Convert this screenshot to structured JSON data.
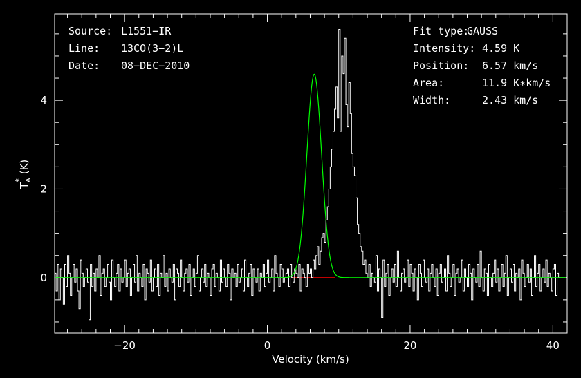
{
  "chart_data": {
    "type": "line",
    "xlabel": "Velocity (km/s)",
    "ylabel_main": "T",
    "ylabel_super": "*",
    "ylabel_sub": "A",
    "ylabel_unit": "(K)",
    "xlim": [
      -29.8,
      42.0
    ],
    "ylim": [
      -1.25,
      5.95
    ],
    "xticks": [
      -20,
      0,
      20,
      40
    ],
    "yticks": [
      0,
      2,
      4
    ],
    "xtick_labels": [
      "−20",
      "0",
      "20",
      "40"
    ],
    "ytick_labels": [
      "0",
      "2",
      "4"
    ],
    "info_left": [
      {
        "key": "Source:",
        "value": "L1551−IR"
      },
      {
        "key": "Line:",
        "value": "13CO(3−2)L"
      },
      {
        "key": "Date:",
        "value": "08−DEC−2010"
      }
    ],
    "info_right": [
      {
        "key": "Fit type:",
        "value": "GAUSS"
      },
      {
        "key": "Intensity:",
        "value": "4.59 K"
      },
      {
        "key": "Position:",
        "value": "6.57 km/s"
      },
      {
        "key": "Area:",
        "value": "11.9 K∗km/s"
      },
      {
        "key": "Width:",
        "value": "2.43 km/s"
      }
    ],
    "fit": {
      "amplitude": 4.59,
      "center": 6.57,
      "fwhm": 2.43
    },
    "colors": {
      "spectrum": "#ffffff",
      "fit": "#00ff00",
      "residual_baseline": "#ff0000",
      "axes": "#ffffff",
      "background": "#000000"
    },
    "spectrum": {
      "x_start": -29.8,
      "x_step": 0.2,
      "y": [
        0.1,
        -0.3,
        0.3,
        -0.5,
        0.2,
        0.0,
        -0.6,
        0.3,
        -0.2,
        0.5,
        0.1,
        -0.4,
        0.0,
        0.3,
        -0.1,
        0.2,
        -0.3,
        -0.7,
        0.4,
        0.1,
        -0.2,
        0.0,
        0.2,
        -0.1,
        -0.95,
        0.3,
        -0.2,
        0.1,
        -0.3,
        0.2,
        0.0,
        0.5,
        -0.4,
        0.1,
        0.2,
        -0.2,
        0.0,
        0.3,
        -0.1,
        -0.5,
        0.4,
        0.0,
        -0.2,
        0.1,
        0.3,
        -0.3,
        0.2,
        -0.1,
        0.0,
        0.4,
        -0.2,
        0.1,
        0.2,
        -0.4,
        0.0,
        0.3,
        -0.1,
        0.5,
        -0.3,
        0.1,
        0.0,
        -0.2,
        0.3,
        -0.5,
        0.2,
        0.1,
        -0.1,
        0.4,
        -0.3,
        0.0,
        0.2,
        -0.2,
        0.3,
        -0.4,
        0.1,
        0.0,
        0.5,
        -0.2,
        0.1,
        -0.3,
        0.2,
        0.0,
        -0.1,
        0.3,
        -0.5,
        0.2,
        0.1,
        -0.2,
        0.4,
        0.0,
        -0.3,
        0.1,
        0.2,
        -0.1,
        0.3,
        -0.4,
        0.0,
        0.2,
        -0.2,
        0.1,
        0.5,
        -0.3,
        0.0,
        0.2,
        -0.1,
        0.3,
        -0.2,
        0.1,
        0.0,
        -0.4,
        0.2,
        0.3,
        -0.2,
        0.1,
        0.0,
        -0.3,
        0.4,
        -0.1,
        0.2,
        0.0,
        -0.2,
        0.3,
        0.1,
        -0.5,
        0.2,
        0.0,
        0.1,
        -0.2,
        0.3,
        -0.1,
        0.0,
        0.2,
        -0.3,
        0.4,
        0.0,
        -0.2,
        0.1,
        0.3,
        -0.4,
        0.2,
        0.0,
        -0.1,
        0.2,
        -0.3,
        0.1,
        0.0,
        0.3,
        -0.2,
        0.1,
        0.4,
        -0.1,
        0.0,
        0.2,
        -0.3,
        0.5,
        0.1,
        0.0,
        -0.2,
        0.3,
        0.2,
        -0.1,
        0.0,
        0.1,
        0.2,
        -0.2,
        0.3,
        0.0,
        -0.1,
        0.2,
        0.1,
        0.0,
        0.3,
        -0.3,
        0.2,
        0.1,
        0.0,
        -0.2,
        0.3,
        0.1,
        0.2,
        0.0,
        0.4,
        0.2,
        0.5,
        0.7,
        0.3,
        0.6,
        0.9,
        1.0,
        0.8,
        1.3,
        1.6,
        2.0,
        2.5,
        2.9,
        3.3,
        3.8,
        4.3,
        3.6,
        5.6,
        3.3,
        5.0,
        4.6,
        5.4,
        3.9,
        3.4,
        4.4,
        3.7,
        2.8,
        2.5,
        2.3,
        1.8,
        1.2,
        1.0,
        0.7,
        0.6,
        0.3,
        0.4,
        0.1,
        0.0,
        0.3,
        -0.2,
        0.1,
        0.0,
        -0.1,
        0.5,
        -0.3,
        0.2,
        0.0,
        -0.9,
        0.4,
        -0.2,
        0.1,
        0.3,
        -0.4,
        0.0,
        0.2,
        -0.1,
        0.3,
        -0.2,
        0.6,
        0.0,
        -0.3,
        0.1,
        0.2,
        -0.1,
        0.0,
        0.4,
        -0.2,
        0.3,
        0.1,
        -0.3,
        0.2,
        0.0,
        -0.5,
        0.3,
        0.1,
        -0.2,
        0.4,
        0.0,
        -0.1,
        0.2,
        -0.3,
        0.1,
        0.3,
        0.0,
        -0.2,
        0.2,
        -0.4,
        0.1,
        0.3,
        -0.1,
        0.0,
        0.2,
        -0.3,
        0.5,
        0.1,
        -0.2,
        0.0,
        0.3,
        -0.4,
        0.1,
        0.2,
        -0.1,
        0.0,
        0.4,
        -0.3,
        0.2,
        0.0,
        -0.2,
        0.3,
        0.1,
        -0.5,
        0.2,
        0.0,
        -0.1,
        0.3,
        -0.2,
        0.6,
        0.0,
        -0.3,
        0.2,
        0.1,
        -0.4,
        0.3,
        0.0,
        -0.2,
        0.1,
        0.4,
        -0.1,
        0.2,
        -0.3,
        0.0,
        0.3,
        -0.2,
        0.1,
        0.5,
        -0.4,
        0.0,
        0.2,
        -0.1,
        0.3,
        -0.3,
        0.1,
        0.0,
        0.2,
        -0.5,
        0.4,
        0.1,
        -0.2,
        0.0,
        0.3,
        -0.1,
        0.2,
        -0.4,
        0.0,
        0.5,
        -0.2,
        0.1,
        0.3,
        -0.3,
        0.0,
        0.2,
        -0.1,
        0.4,
        -0.2,
        0.1,
        0.0,
        -0.3,
        0.2,
        0.3,
        -0.4,
        0.1,
        0.0
      ]
    }
  }
}
